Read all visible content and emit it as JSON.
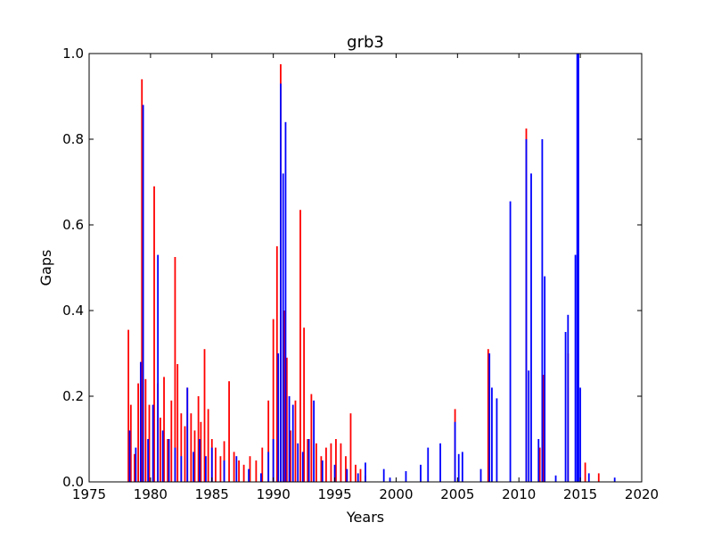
{
  "chart_data": {
    "type": "bar",
    "title": "grb3",
    "xlabel": "Years",
    "ylabel": "Gaps",
    "xlim": [
      1975,
      2020
    ],
    "ylim": [
      0.0,
      1.0
    ],
    "xticks": [
      "1975",
      "1980",
      "1985",
      "1990",
      "1995",
      "2000",
      "2005",
      "2010",
      "2015",
      "2020"
    ],
    "yticks": [
      "0.0",
      "0.2",
      "0.4",
      "0.6",
      "0.8",
      "1.0"
    ],
    "grid": false,
    "legend": "none",
    "series": [
      {
        "color": "#ff0000",
        "x": [
          1978.2,
          1978.4,
          1978.7,
          1979.0,
          1979.3,
          1979.6,
          1979.9,
          1980.3,
          1980.6,
          1980.8,
          1981.1,
          1981.4,
          1981.7,
          1982.0,
          1982.2,
          1982.5,
          1982.8,
          1983.0,
          1983.3,
          1983.6,
          1983.9,
          1984.1,
          1984.4,
          1984.7,
          1985.0,
          1985.3,
          1985.7,
          1986.0,
          1986.4,
          1986.8,
          1987.2,
          1987.6,
          1988.1,
          1988.6,
          1989.1,
          1989.6,
          1990.0,
          1990.3,
          1990.6,
          1990.9,
          1991.1,
          1991.4,
          1991.8,
          1992.2,
          1992.5,
          1992.8,
          1993.1,
          1993.5,
          1993.9,
          1994.3,
          1994.7,
          1995.1,
          1995.5,
          1995.9,
          1996.3,
          1996.7,
          1997.1,
          1997.5,
          2004.8,
          2007.5,
          2010.6,
          2011.7,
          2012.0,
          2014.0,
          2014.8,
          2015.4,
          2016.5
        ],
        "values": [
          0.355,
          0.18,
          0.065,
          0.23,
          0.94,
          0.24,
          0.18,
          0.69,
          0.23,
          0.15,
          0.245,
          0.1,
          0.19,
          0.525,
          0.275,
          0.16,
          0.13,
          0.22,
          0.16,
          0.12,
          0.2,
          0.14,
          0.31,
          0.17,
          0.1,
          0.08,
          0.06,
          0.095,
          0.235,
          0.07,
          0.05,
          0.04,
          0.06,
          0.05,
          0.08,
          0.19,
          0.38,
          0.55,
          0.975,
          0.4,
          0.29,
          0.12,
          0.19,
          0.635,
          0.36,
          0.1,
          0.205,
          0.09,
          0.06,
          0.08,
          0.09,
          0.1,
          0.09,
          0.06,
          0.16,
          0.04,
          0.03,
          0.015,
          0.17,
          0.31,
          0.825,
          0.08,
          0.25,
          0.3,
          1.0,
          0.045,
          0.02
        ]
      },
      {
        "color": "#0000ff",
        "x": [
          1978.3,
          1978.8,
          1979.2,
          1979.4,
          1979.8,
          1980.2,
          1980.6,
          1981.0,
          1981.5,
          1982.0,
          1982.5,
          1983.0,
          1983.5,
          1984.0,
          1984.5,
          1985.0,
          1986.0,
          1987.0,
          1988.0,
          1989.0,
          1989.6,
          1990.0,
          1990.4,
          1990.6,
          1990.8,
          1991.0,
          1991.3,
          1991.6,
          1992.0,
          1992.4,
          1992.9,
          1993.3,
          1994.0,
          1995.0,
          1996.0,
          1996.9,
          1997.5,
          1999.0,
          1999.5,
          2000.8,
          2002.0,
          2002.6,
          2003.6,
          2004.8,
          2005.1,
          2005.4,
          2006.9,
          2007.6,
          2007.8,
          2008.2,
          2009.3,
          2010.6,
          2010.8,
          2011.0,
          2011.6,
          2011.9,
          2012.1,
          2013.0,
          2013.8,
          2014.0,
          2014.6,
          2014.75,
          2014.85,
          2015.0,
          2015.7,
          2017.8
        ],
        "values": [
          0.12,
          0.08,
          0.28,
          0.88,
          0.1,
          0.18,
          0.53,
          0.12,
          0.1,
          0.08,
          0.06,
          0.22,
          0.07,
          0.1,
          0.06,
          0.08,
          0.05,
          0.06,
          0.03,
          0.02,
          0.07,
          0.1,
          0.3,
          0.93,
          0.72,
          0.84,
          0.2,
          0.18,
          0.09,
          0.07,
          0.1,
          0.19,
          0.05,
          0.04,
          0.03,
          0.02,
          0.045,
          0.03,
          0.01,
          0.025,
          0.04,
          0.08,
          0.09,
          0.14,
          0.065,
          0.07,
          0.03,
          0.3,
          0.22,
          0.195,
          0.655,
          0.8,
          0.26,
          0.72,
          0.1,
          0.8,
          0.48,
          0.015,
          0.35,
          0.39,
          0.53,
          1.0,
          1.0,
          0.22,
          0.02,
          0.01
        ]
      }
    ]
  }
}
